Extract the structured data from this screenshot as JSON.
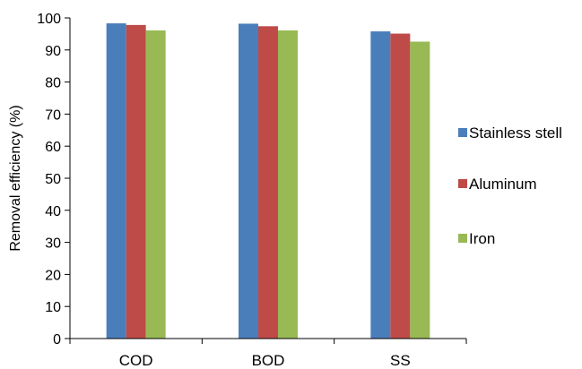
{
  "chart_data": {
    "type": "bar",
    "title": "",
    "xlabel": "",
    "ylabel": "Removal efficiency (%)",
    "categories": [
      "COD",
      "BOD",
      "SS"
    ],
    "series": [
      {
        "name": "Stainless stell",
        "values": [
          98.3,
          98.2,
          95.8
        ],
        "color": "#4a7ebb"
      },
      {
        "name": "Aluminum",
        "values": [
          97.8,
          97.4,
          95.1
        ],
        "color": "#be4b48"
      },
      {
        "name": "Iron",
        "values": [
          96.1,
          96.1,
          92.6
        ],
        "color": "#98b954"
      }
    ],
    "ylim": [
      0,
      100
    ],
    "yticks": [
      "0",
      "10",
      "20",
      "30",
      "40",
      "50",
      "60",
      "70",
      "80",
      "90",
      "100"
    ],
    "grid": false,
    "legend_position": "right"
  }
}
